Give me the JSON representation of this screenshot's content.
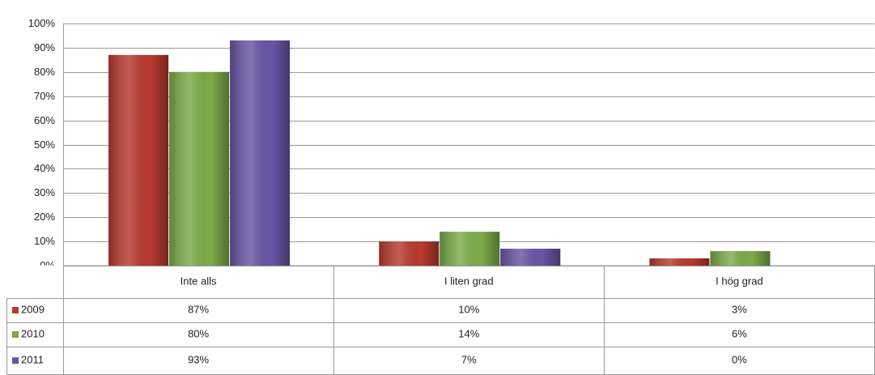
{
  "chart_data": {
    "type": "bar",
    "categories": [
      "Inte alls",
      "I liten grad",
      "I hög grad"
    ],
    "series": [
      {
        "name": "2009",
        "color": "#b83a30",
        "values": [
          87,
          10,
          3
        ],
        "value_labels": [
          "87%",
          "10%",
          "3%"
        ]
      },
      {
        "name": "2010",
        "color": "#7cab48",
        "values": [
          80,
          14,
          6
        ],
        "value_labels": [
          "80%",
          "14%",
          "6%"
        ]
      },
      {
        "name": "2011",
        "color": "#6a55a4",
        "values": [
          93,
          7,
          0
        ],
        "value_labels": [
          "93%",
          "7%",
          "0%"
        ]
      }
    ],
    "ylim": [
      0,
      100
    ],
    "yticks": [
      {
        "value": 0,
        "label": "0%"
      },
      {
        "value": 10,
        "label": "10%"
      },
      {
        "value": 20,
        "label": "20%"
      },
      {
        "value": 30,
        "label": "30%"
      },
      {
        "value": 40,
        "label": "40%"
      },
      {
        "value": 50,
        "label": "50%"
      },
      {
        "value": 60,
        "label": "60%"
      },
      {
        "value": 70,
        "label": "70%"
      },
      {
        "value": 80,
        "label": "80%"
      },
      {
        "value": 90,
        "label": "90%"
      },
      {
        "value": 100,
        "label": "100%"
      }
    ],
    "grid": true,
    "legend": "table"
  }
}
